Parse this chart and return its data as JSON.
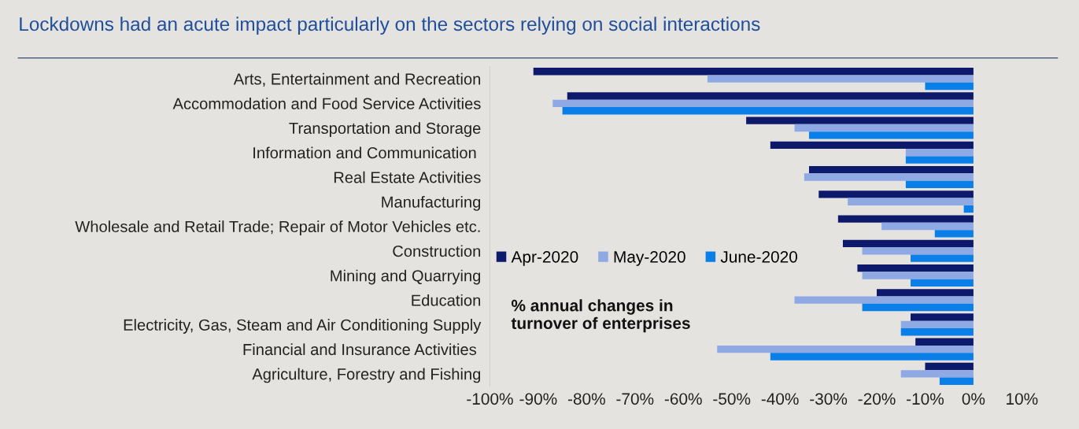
{
  "chart_data": {
    "type": "bar",
    "orientation": "horizontal",
    "title": "Lockdowns had an acute impact particularly on the sectors relying on social interactions",
    "categories": [
      "Arts, Entertainment and Recreation",
      "Accommodation and Food Service Activities",
      "Transportation and Storage",
      "Information and Communication ",
      "Real Estate Activities",
      "Manufacturing",
      "Wholesale and Retail Trade; Repair of Motor Vehicles etc.",
      "Construction",
      "Mining and Quarrying",
      "Education",
      "Electricity, Gas, Steam and Air Conditioning Supply",
      "Financial and Insurance Activities ",
      "Agriculture, Forestry and Fishing"
    ],
    "series": [
      {
        "name": "Apr-2020",
        "color": "#0d1a6b",
        "values": [
          -91,
          -84,
          -47,
          -42,
          -34,
          -32,
          -28,
          -27,
          -24,
          -20,
          -13,
          -12,
          -10
        ]
      },
      {
        "name": "May-2020",
        "color": "#8ea9e3",
        "values": [
          -55,
          -87,
          -37,
          -14,
          -35,
          -26,
          -19,
          -23,
          -23,
          -37,
          -15,
          -53,
          -15
        ]
      },
      {
        "name": "June-2020",
        "color": "#0a7fe8",
        "values": [
          -10,
          -85,
          -34,
          -14,
          -14,
          -2,
          -8,
          -13,
          -13,
          -23,
          -15,
          -42,
          -7
        ]
      }
    ],
    "xlim": [
      -100,
      10
    ],
    "xticks": [
      {
        "value": -100,
        "label": "-100%"
      },
      {
        "value": -90,
        "label": "-90%"
      },
      {
        "value": -80,
        "label": "-80%"
      },
      {
        "value": -70,
        "label": "-70%"
      },
      {
        "value": -60,
        "label": "-60%"
      },
      {
        "value": -50,
        "label": "-50%"
      },
      {
        "value": -40,
        "label": "-40%"
      },
      {
        "value": -30,
        "label": "-30%"
      },
      {
        "value": -20,
        "label": "-20%"
      },
      {
        "value": -10,
        "label": "-10%"
      },
      {
        "value": 0,
        "label": "0%"
      },
      {
        "value": 10,
        "label": "10%"
      }
    ],
    "annotations": [
      "% annual changes in\nturnover of enterprises"
    ],
    "legend": "left",
    "grid": false
  }
}
